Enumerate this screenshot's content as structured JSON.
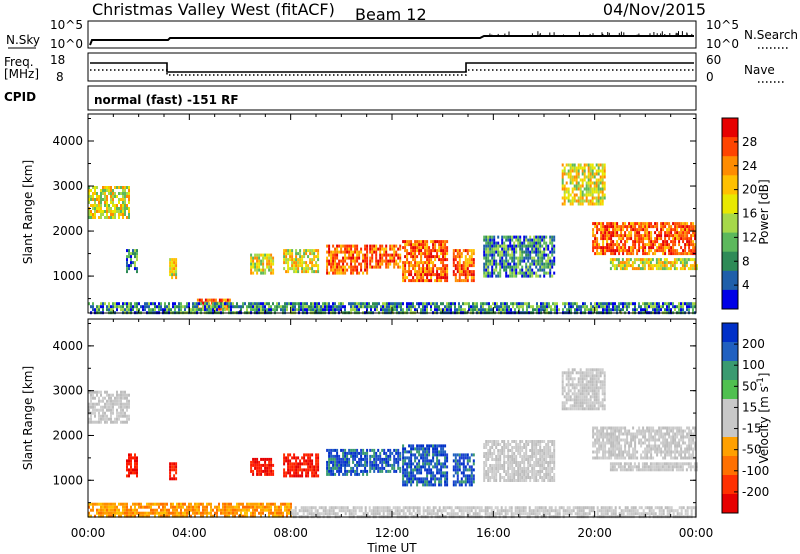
{
  "header": {
    "station": "Christmas Valley West (fitACF)",
    "beam": "Beam 12",
    "date": "04/Nov/2015"
  },
  "top_panels": {
    "nsky_label": "N.Sky",
    "nsky_ticks": [
      "10^5",
      "10^0"
    ],
    "nsearch_label": "N.Search",
    "nsearch_ticks": [
      "10^5",
      "10^0"
    ],
    "freq_label": "Freq.",
    "freq_unit": "[MHz]",
    "freq_ticks": [
      "18",
      "8"
    ],
    "nave_label": "Nave",
    "nave_ticks": [
      "60",
      "0"
    ],
    "cpid_label": "CPID",
    "cpid_text": "normal (fast) -151 RF"
  },
  "chart_data": [
    {
      "type": "heatmap",
      "panel": "power",
      "xlabel": "Time UT",
      "ylabel": "Slant Range [km]",
      "xlim": [
        0,
        24
      ],
      "ylim": [
        180,
        4600
      ],
      "yticks": [
        "4000",
        "3000",
        "2000",
        "1000"
      ],
      "xticks": [
        "00:00",
        "04:00",
        "08:00",
        "12:00",
        "16:00",
        "20:00",
        "00:00"
      ],
      "colorbar_label": "Power [dB]",
      "colorbar_ticks": [
        "28",
        "24",
        "20",
        "16",
        "12",
        "8",
        "4"
      ],
      "colorbar_colors": [
        "#e60000",
        "#ff4400",
        "#ff8c00",
        "#ffc000",
        "#e8e800",
        "#a6d84a",
        "#5cb85c",
        "#2e8b57",
        "#1f5faa",
        "#0000e6"
      ],
      "echo_regions": [
        {
          "t": [
            0.0,
            1.6
          ],
          "r": [
            2300,
            3000
          ],
          "level": "mid"
        },
        {
          "t": [
            1.5,
            1.9
          ],
          "r": [
            1100,
            1600
          ],
          "level": "low"
        },
        {
          "t": [
            3.2,
            3.5
          ],
          "r": [
            1000,
            1400
          ],
          "level": "mid"
        },
        {
          "t": [
            4.3,
            5.6
          ],
          "r": [
            250,
            500
          ],
          "level": "high"
        },
        {
          "t": [
            6.4,
            7.3
          ],
          "r": [
            1100,
            1500
          ],
          "level": "mid"
        },
        {
          "t": [
            7.7,
            9.1
          ],
          "r": [
            1100,
            1600
          ],
          "level": "mid"
        },
        {
          "t": [
            9.4,
            11.0
          ],
          "r": [
            1100,
            1700
          ],
          "level": "high"
        },
        {
          "t": [
            11.1,
            12.3
          ],
          "r": [
            1200,
            1700
          ],
          "level": "high"
        },
        {
          "t": [
            12.4,
            14.2
          ],
          "r": [
            900,
            1800
          ],
          "level": "high"
        },
        {
          "t": [
            14.4,
            15.2
          ],
          "r": [
            900,
            1600
          ],
          "level": "high"
        },
        {
          "t": [
            15.6,
            18.4
          ],
          "r": [
            1000,
            1900
          ],
          "level": "low"
        },
        {
          "t": [
            18.7,
            20.4
          ],
          "r": [
            2600,
            3500
          ],
          "level": "mid"
        },
        {
          "t": [
            19.9,
            24.0
          ],
          "r": [
            1500,
            2200
          ],
          "level": "high"
        },
        {
          "t": [
            20.6,
            24.0
          ],
          "r": [
            1200,
            1400
          ],
          "level": "mid"
        },
        {
          "t": [
            0.0,
            24.0
          ],
          "r": [
            200,
            420
          ],
          "level": "low"
        }
      ]
    },
    {
      "type": "heatmap",
      "panel": "velocity",
      "xlabel": "Time UT",
      "ylabel": "Slant Range [km]",
      "xlim": [
        0,
        24
      ],
      "ylim": [
        180,
        4600
      ],
      "yticks": [
        "4000",
        "3000",
        "2000",
        "1000"
      ],
      "xticks": [
        "00:00",
        "04:00",
        "08:00",
        "12:00",
        "16:00",
        "20:00",
        "00:00"
      ],
      "colorbar_label": "Velocity [m s",
      "colorbar_unit_sup": "-1",
      "colorbar_unit_end": "]",
      "colorbar_ticks": [
        "200",
        "100",
        "50",
        "15",
        "-15",
        "-50",
        "-100",
        "-200"
      ],
      "colorbar_colors": [
        "#0030c8",
        "#2060c0",
        "#3a9a70",
        "#50c050",
        "#c8c8c8",
        "#c8c8c8",
        "#ffa000",
        "#ff7000",
        "#ff3000",
        "#e60000"
      ],
      "echo_regions": [
        {
          "t": [
            0.0,
            1.6
          ],
          "r": [
            2300,
            3000
          ],
          "v": "zero"
        },
        {
          "t": [
            1.5,
            1.9
          ],
          "r": [
            1100,
            1600
          ],
          "v": "neg_large"
        },
        {
          "t": [
            3.2,
            3.5
          ],
          "r": [
            1000,
            1400
          ],
          "v": "neg_large"
        },
        {
          "t": [
            6.4,
            7.3
          ],
          "r": [
            1100,
            1500
          ],
          "v": "neg_large"
        },
        {
          "t": [
            7.7,
            9.1
          ],
          "r": [
            1100,
            1600
          ],
          "v": "neg_large"
        },
        {
          "t": [
            9.4,
            11.0
          ],
          "r": [
            1100,
            1700
          ],
          "v": "pos_large"
        },
        {
          "t": [
            11.1,
            12.3
          ],
          "r": [
            1200,
            1700
          ],
          "v": "pos_large"
        },
        {
          "t": [
            12.4,
            14.2
          ],
          "r": [
            900,
            1800
          ],
          "v": "pos_large"
        },
        {
          "t": [
            14.4,
            15.2
          ],
          "r": [
            900,
            1600
          ],
          "v": "pos_large"
        },
        {
          "t": [
            15.6,
            18.4
          ],
          "r": [
            1000,
            1900
          ],
          "v": "zero"
        },
        {
          "t": [
            18.7,
            20.4
          ],
          "r": [
            2600,
            3500
          ],
          "v": "zero"
        },
        {
          "t": [
            19.9,
            24.0
          ],
          "r": [
            1500,
            2200
          ],
          "v": "zero"
        },
        {
          "t": [
            20.6,
            24.0
          ],
          "r": [
            1200,
            1400
          ],
          "v": "zero"
        },
        {
          "t": [
            0.0,
            8.0
          ],
          "r": [
            200,
            500
          ],
          "v": "neg_small"
        },
        {
          "t": [
            8.0,
            24.0
          ],
          "r": [
            200,
            420
          ],
          "v": "zero"
        }
      ]
    }
  ]
}
